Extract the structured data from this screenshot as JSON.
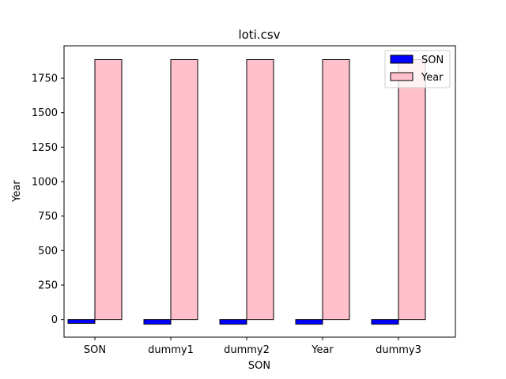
{
  "chart_data": {
    "type": "bar",
    "title": "loti.csv",
    "xlabel": "SON",
    "ylabel": "Year",
    "categories": [
      "SON",
      "dummy1",
      "dummy2",
      "Year",
      "dummy3"
    ],
    "series": [
      {
        "name": "SON",
        "values": [
          -28,
          -34,
          -34,
          -34,
          -34
        ],
        "color": "#0000ff"
      },
      {
        "name": "Year",
        "values": [
          1885,
          1885,
          1885,
          1885,
          1885
        ],
        "color": "#ffc0cb"
      }
    ],
    "ylim": [
      -128,
      1985
    ],
    "yticks": [
      0,
      250,
      500,
      750,
      1000,
      1250,
      1500,
      1750
    ],
    "grid": false,
    "legend_position": "top-right"
  }
}
